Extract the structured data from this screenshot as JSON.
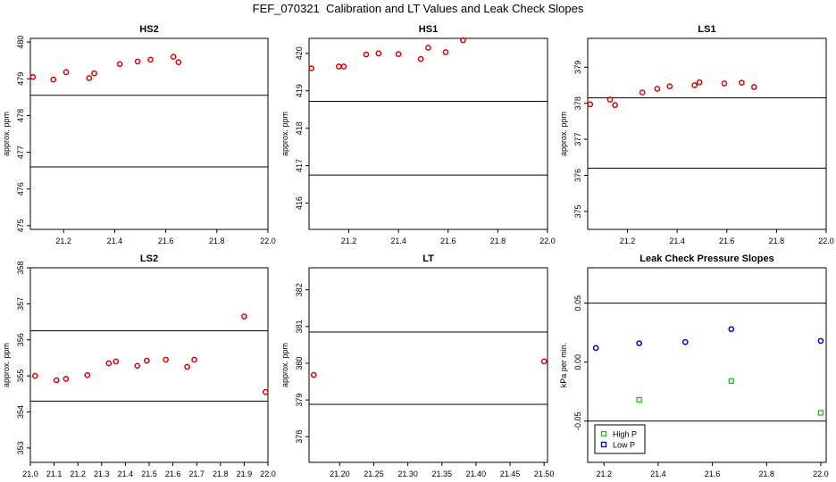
{
  "figure": {
    "title": "FEF_070321  Calibration and LT Values and Leak Check Slopes"
  },
  "colors": {
    "points": "#dd0000",
    "high_p": "#22bb22",
    "low_p": "#0000cc",
    "axis": "#000000",
    "line": "#000000"
  },
  "chart_data": [
    {
      "type": "scatter",
      "id": "hs2",
      "title": "HS2",
      "ylabel": "approx. ppm",
      "xlim": [
        21.07,
        22.0
      ],
      "ylim": [
        474.9,
        480.1
      ],
      "xticks": [
        21.2,
        21.4,
        21.6,
        21.8,
        22.0
      ],
      "xticklabels": [
        "21.2",
        "21.4",
        "21.6",
        "21.8",
        "22.0"
      ],
      "yticks": [
        475,
        476,
        477,
        478,
        479,
        480
      ],
      "yticklabels": [
        "475",
        "476",
        "477",
        "478",
        "479",
        "480"
      ],
      "hlines": [
        478.55,
        476.6
      ],
      "x": [
        21.08,
        21.16,
        21.21,
        21.3,
        21.32,
        21.42,
        21.49,
        21.54,
        21.63,
        21.65
      ],
      "y": [
        479.05,
        478.98,
        479.18,
        479.02,
        479.15,
        479.4,
        479.47,
        479.52,
        479.6,
        479.45
      ]
    },
    {
      "type": "scatter",
      "id": "hs1",
      "title": "HS1",
      "ylabel": "approx. ppm",
      "xlim": [
        21.04,
        22.0
      ],
      "ylim": [
        415.3,
        420.4
      ],
      "xticks": [
        21.2,
        21.4,
        21.6,
        21.8,
        22.0
      ],
      "xticklabels": [
        "21.2",
        "21.4",
        "21.6",
        "21.8",
        "22.0"
      ],
      "yticks": [
        416,
        417,
        418,
        419,
        420
      ],
      "yticklabels": [
        "416",
        "417",
        "418",
        "419",
        "420"
      ],
      "hlines": [
        418.72,
        416.75
      ],
      "x": [
        21.05,
        21.16,
        21.18,
        21.27,
        21.32,
        21.4,
        21.49,
        21.52,
        21.59,
        21.66
      ],
      "y": [
        419.6,
        419.65,
        419.65,
        419.97,
        420.0,
        419.98,
        419.85,
        420.15,
        420.03,
        420.35
      ]
    },
    {
      "type": "scatter",
      "id": "ls1",
      "title": "LS1",
      "ylabel": "approx. ppm",
      "xlim": [
        21.04,
        22.0
      ],
      "ylim": [
        374.5,
        379.8
      ],
      "xticks": [
        21.2,
        21.4,
        21.6,
        21.8,
        22.0
      ],
      "xticklabels": [
        "21.2",
        "21.4",
        "21.6",
        "21.8",
        "22.0"
      ],
      "yticks": [
        375,
        376,
        377,
        378,
        379
      ],
      "yticklabels": [
        "375",
        "376",
        "377",
        "378",
        "379"
      ],
      "hlines": [
        378.15,
        376.2
      ],
      "x": [
        21.05,
        21.13,
        21.15,
        21.26,
        21.32,
        21.37,
        21.47,
        21.49,
        21.59,
        21.66,
        21.71
      ],
      "y": [
        377.97,
        378.1,
        377.95,
        378.3,
        378.4,
        378.47,
        378.5,
        378.58,
        378.55,
        378.57,
        378.45
      ]
    },
    {
      "type": "scatter",
      "id": "ls2",
      "title": "LS2",
      "ylabel": "approx. ppm",
      "xlim": [
        21.0,
        22.0
      ],
      "ylim": [
        352.6,
        358.0
      ],
      "xticks": [
        21.0,
        21.1,
        21.2,
        21.3,
        21.4,
        21.5,
        21.6,
        21.7,
        21.8,
        21.9,
        22.0
      ],
      "xticklabels": [
        "21.0",
        "21.1",
        "21.2",
        "21.3",
        "21.4",
        "21.5",
        "21.6",
        "21.7",
        "21.8",
        "21.9",
        "22.0"
      ],
      "yticks": [
        353,
        354,
        355,
        356,
        357,
        358
      ],
      "yticklabels": [
        "353",
        "354",
        "355",
        "356",
        "357",
        "358"
      ],
      "hlines": [
        356.25,
        354.3
      ],
      "x": [
        21.02,
        21.11,
        21.15,
        21.24,
        21.33,
        21.36,
        21.45,
        21.49,
        21.57,
        21.66,
        21.69,
        21.9,
        21.99
      ],
      "y": [
        355.0,
        354.88,
        354.92,
        355.02,
        355.35,
        355.4,
        355.28,
        355.42,
        355.45,
        355.25,
        355.45,
        356.65,
        354.55
      ]
    },
    {
      "type": "scatter",
      "id": "lt",
      "title": "LT",
      "ylabel": "approx. ppm",
      "xlim": [
        21.155,
        21.505
      ],
      "ylim": [
        377.3,
        382.6
      ],
      "xticks": [
        21.2,
        21.25,
        21.3,
        21.35,
        21.4,
        21.45,
        21.5
      ],
      "xticklabels": [
        "21.20",
        "21.25",
        "21.30",
        "21.35",
        "21.40",
        "21.45",
        "21.50"
      ],
      "yticks": [
        378,
        379,
        380,
        381,
        382
      ],
      "yticklabels": [
        "378",
        "379",
        "380",
        "381",
        "382"
      ],
      "hlines": [
        380.85,
        378.88
      ],
      "x": [
        21.162,
        21.5
      ],
      "y": [
        379.68,
        380.05
      ]
    },
    {
      "type": "scatter",
      "id": "leak",
      "title": "Leak Check Pressure Slopes",
      "ylabel": "kPa per min.",
      "xlim": [
        21.14,
        22.02
      ],
      "ylim": [
        -0.085,
        0.08
      ],
      "xticks": [
        21.2,
        21.4,
        21.6,
        21.8,
        22.0
      ],
      "xticklabels": [
        "21.2",
        "21.4",
        "21.6",
        "21.8",
        "22.0"
      ],
      "yticks": [
        -0.05,
        0.0,
        0.05
      ],
      "yticklabels": [
        "-0.05",
        "0.00",
        "0.05"
      ],
      "hlines": [
        0.05,
        -0.05
      ],
      "series": [
        {
          "name": "High P",
          "marker": "square",
          "x": [
            21.33,
            21.67,
            22.0
          ],
          "y": [
            -0.032,
            -0.016,
            -0.043
          ]
        },
        {
          "name": "Low P",
          "marker": "circle",
          "x": [
            21.17,
            21.33,
            21.5,
            21.67,
            22.0
          ],
          "y": [
            0.012,
            0.016,
            0.017,
            0.028,
            0.018
          ]
        }
      ],
      "legend": {
        "placement": "bottom-left",
        "entries": [
          "High P",
          "Low P"
        ]
      }
    }
  ]
}
